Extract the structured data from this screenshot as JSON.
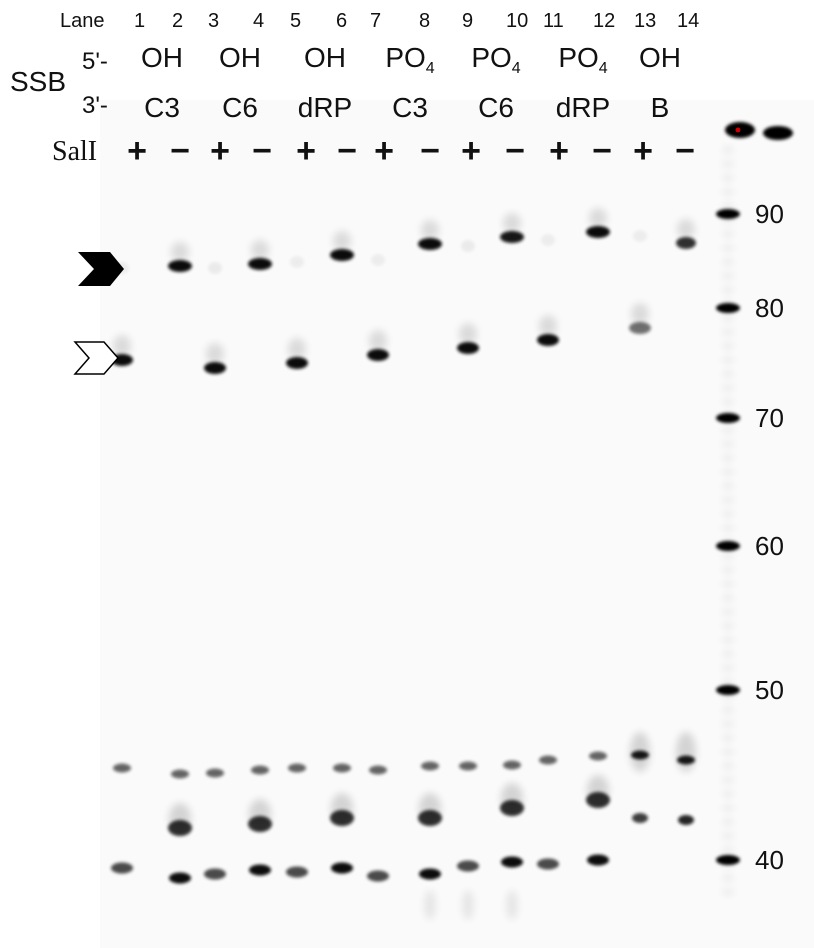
{
  "header": {
    "lane_label": "Lane",
    "lane_numbers": [
      "1",
      "2",
      "3",
      "4",
      "5",
      "6",
      "7",
      "8",
      "9",
      "10",
      "11",
      "12",
      "13",
      "14"
    ],
    "ssb_label": "SSB",
    "five_prime_label": "5'-",
    "three_prime_label": "3'-",
    "groups": [
      {
        "five": "OH",
        "five_sub": "",
        "three": "C3"
      },
      {
        "five": "OH",
        "five_sub": "",
        "three": "C6"
      },
      {
        "five": "OH",
        "five_sub": "",
        "three": "dRP"
      },
      {
        "five": "PO",
        "five_sub": "4",
        "three": "C3"
      },
      {
        "five": "PO",
        "five_sub": "4",
        "three": "C6"
      },
      {
        "five": "PO",
        "five_sub": "4",
        "three": "dRP"
      },
      {
        "five": "OH",
        "five_sub": "",
        "three": "B"
      }
    ],
    "sali_label": "SalI",
    "sali_signs": [
      "+",
      "−",
      "+",
      "−",
      "+",
      "−",
      "+",
      "−",
      "+",
      "−",
      "+",
      "−",
      "+",
      "−"
    ]
  },
  "markers": [
    "90",
    "80",
    "70",
    "60",
    "50",
    "40"
  ],
  "colors": {
    "band": "#000000",
    "background": "#fafafa",
    "marker_dot": "#cc0000"
  },
  "icons": {
    "filled_arrow": "filled-chevron-arrow-icon",
    "open_arrow": "open-chevron-arrow-icon"
  }
}
